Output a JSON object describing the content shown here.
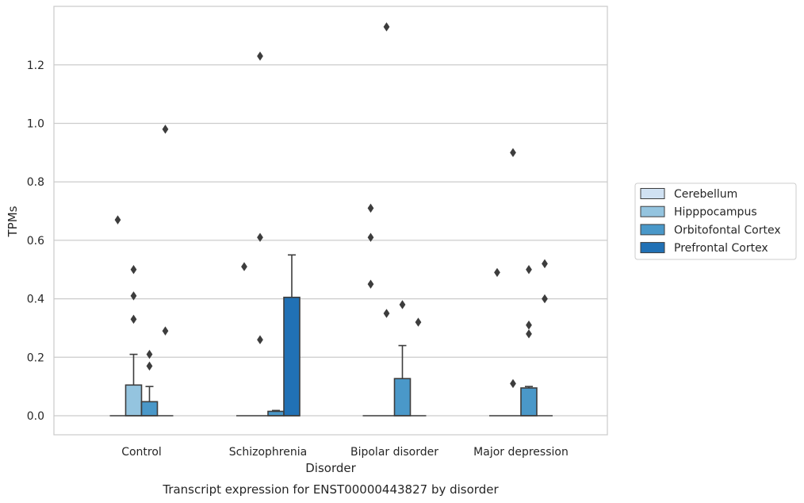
{
  "chart_data": {
    "type": "box",
    "title": "",
    "caption": "Transcript expression for ENST00000443827 by disorder",
    "xlabel": "Disorder",
    "ylabel": "TPMs",
    "ylim": [
      -0.065,
      1.4
    ],
    "yticks": [
      0.0,
      0.2,
      0.4,
      0.6,
      0.8,
      1.0,
      1.2
    ],
    "ytick_labels": [
      "0.0",
      "0.2",
      "0.4",
      "0.6",
      "0.8",
      "1.0",
      "1.2"
    ],
    "grid": "horizontal",
    "legend_position": "right",
    "categories": [
      "Control",
      "Schizophrenia",
      "Bipolar disorder",
      "Major depression"
    ],
    "series": [
      {
        "name": "Cerebellum",
        "color": "#d0e1f2",
        "boxes": [
          {
            "category": "Control",
            "q1": 0,
            "median": 0,
            "q3": 0,
            "whisker_low": 0,
            "whisker_high": 0,
            "outliers": [
              0.67
            ]
          },
          {
            "category": "Schizophrenia",
            "q1": 0,
            "median": 0,
            "q3": 0,
            "whisker_low": 0,
            "whisker_high": 0,
            "outliers": [
              0.51
            ]
          },
          {
            "category": "Bipolar disorder",
            "q1": 0,
            "median": 0,
            "q3": 0,
            "whisker_low": 0,
            "whisker_high": 0,
            "outliers": [
              0.71,
              0.61,
              0.45
            ]
          },
          {
            "category": "Major depression",
            "q1": 0,
            "median": 0,
            "q3": 0,
            "whisker_low": 0,
            "whisker_high": 0,
            "outliers": [
              0.49
            ]
          }
        ]
      },
      {
        "name": "Hipppocampus",
        "color": "#94c4df",
        "boxes": [
          {
            "category": "Control",
            "q1": 0,
            "median": 0,
            "q3": 0.105,
            "whisker_low": 0,
            "whisker_high": 0.21,
            "outliers": [
              0.5,
              0.41,
              0.33
            ]
          },
          {
            "category": "Schizophrenia",
            "q1": 0,
            "median": 0,
            "q3": 0,
            "whisker_low": 0,
            "whisker_high": 0,
            "outliers": [
              1.23,
              0.61,
              0.26
            ]
          },
          {
            "category": "Bipolar disorder",
            "q1": 0,
            "median": 0,
            "q3": 0,
            "whisker_low": 0,
            "whisker_high": 0,
            "outliers": [
              1.33,
              0.35
            ]
          },
          {
            "category": "Major depression",
            "q1": 0,
            "median": 0,
            "q3": 0,
            "whisker_low": 0,
            "whisker_high": 0,
            "outliers": [
              0.9,
              0.11
            ]
          }
        ]
      },
      {
        "name": "Orbitofontal Cortex",
        "color": "#4a98c9",
        "boxes": [
          {
            "category": "Control",
            "q1": 0,
            "median": 0,
            "q3": 0.048,
            "whisker_low": 0,
            "whisker_high": 0.1,
            "outliers": [
              0.21,
              0.17
            ]
          },
          {
            "category": "Schizophrenia",
            "q1": 0,
            "median": 0,
            "q3": 0.015,
            "whisker_low": 0,
            "whisker_high": 0.018,
            "outliers": []
          },
          {
            "category": "Bipolar disorder",
            "q1": 0,
            "median": 0,
            "q3": 0.127,
            "whisker_low": 0,
            "whisker_high": 0.24,
            "outliers": [
              0.38
            ]
          },
          {
            "category": "Major depression",
            "q1": 0,
            "median": 0,
            "q3": 0.095,
            "whisker_low": 0,
            "whisker_high": 0.1,
            "outliers": [
              0.5,
              0.31,
              0.28
            ]
          }
        ]
      },
      {
        "name": "Prefrontal Cortex",
        "color": "#2171b5",
        "boxes": [
          {
            "category": "Control",
            "q1": 0,
            "median": 0,
            "q3": 0,
            "whisker_low": 0,
            "whisker_high": 0,
            "outliers": [
              0.98,
              0.29
            ]
          },
          {
            "category": "Schizophrenia",
            "q1": 0,
            "median": 0,
            "q3": 0.405,
            "whisker_low": 0,
            "whisker_high": 0.55,
            "outliers": []
          },
          {
            "category": "Bipolar disorder",
            "q1": 0,
            "median": 0,
            "q3": 0,
            "whisker_low": 0,
            "whisker_high": 0,
            "outliers": [
              0.32
            ]
          },
          {
            "category": "Major depression",
            "q1": 0,
            "median": 0,
            "q3": 0,
            "whisker_low": 0,
            "whisker_high": 0,
            "outliers": [
              0.52,
              0.4
            ]
          }
        ]
      }
    ]
  }
}
